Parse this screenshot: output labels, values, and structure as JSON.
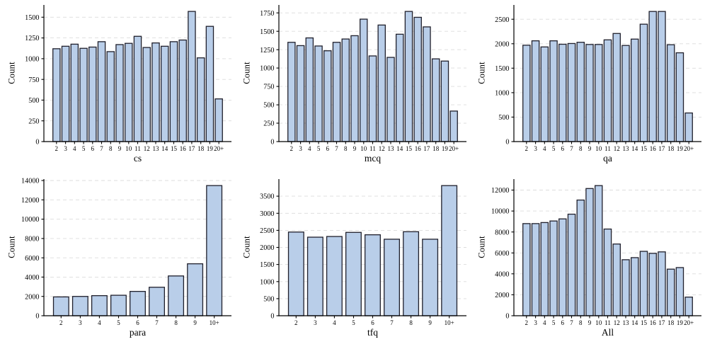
{
  "figure": {
    "background": "#ffffff",
    "bar_fill": "#b9cee9",
    "bar_edge": "#20202c",
    "grid_color": "#dcdcdc",
    "axis_color": "#000000"
  },
  "chart_data": [
    {
      "type": "bar",
      "title": "cs",
      "ylabel": "Count",
      "categories": [
        "2",
        "3",
        "4",
        "5",
        "6",
        "7",
        "8",
        "9",
        "10",
        "11",
        "12",
        "13",
        "14",
        "15",
        "16",
        "17",
        "18",
        "19",
        "20+"
      ],
      "values": [
        1120,
        1150,
        1175,
        1125,
        1140,
        1205,
        1085,
        1170,
        1185,
        1270,
        1135,
        1190,
        1150,
        1205,
        1225,
        1570,
        1010,
        1390,
        515
      ],
      "yticks": [
        0,
        250,
        500,
        750,
        1000,
        1250,
        1500
      ],
      "ylim": [
        0,
        1648
      ],
      "grid": "dashed-horizontal",
      "legend": "none"
    },
    {
      "type": "bar",
      "title": "mcq",
      "ylabel": "Count",
      "categories": [
        "2",
        "3",
        "4",
        "5",
        "6",
        "7",
        "8",
        "9",
        "10",
        "11",
        "12",
        "13",
        "14",
        "15",
        "16",
        "17",
        "18",
        "19",
        "20+"
      ],
      "values": [
        1350,
        1305,
        1410,
        1300,
        1235,
        1350,
        1395,
        1440,
        1665,
        1165,
        1585,
        1145,
        1460,
        1770,
        1690,
        1560,
        1125,
        1095,
        415
      ],
      "yticks": [
        0,
        250,
        500,
        750,
        1000,
        1250,
        1500,
        1750
      ],
      "ylim": [
        0,
        1858
      ],
      "grid": "dashed-horizontal",
      "legend": "none"
    },
    {
      "type": "bar",
      "title": "qa",
      "ylabel": "Count",
      "categories": [
        "2",
        "3",
        "4",
        "5",
        "6",
        "7",
        "8",
        "9",
        "10",
        "11",
        "12",
        "13",
        "14",
        "15",
        "16",
        "17",
        "18",
        "19",
        "20+"
      ],
      "values": [
        1970,
        2060,
        1935,
        2060,
        1990,
        2005,
        2030,
        1985,
        1985,
        2080,
        2210,
        1965,
        2095,
        2400,
        2660,
        2660,
        1980,
        1815,
        585
      ],
      "yticks": [
        0,
        500,
        1000,
        1500,
        2000,
        2500
      ],
      "ylim": [
        0,
        2793
      ],
      "grid": "dashed-horizontal",
      "legend": "none"
    },
    {
      "type": "bar",
      "title": "para",
      "ylabel": "Count",
      "categories": [
        "2",
        "3",
        "4",
        "5",
        "6",
        "7",
        "8",
        "9",
        "10+"
      ],
      "values": [
        1950,
        2000,
        2080,
        2120,
        2520,
        2950,
        4120,
        5380,
        13480
      ],
      "yticks": [
        0,
        2000,
        4000,
        6000,
        8000,
        10000,
        12000,
        14000
      ],
      "ylim": [
        0,
        14150
      ],
      "grid": "dashed-horizontal",
      "legend": "none"
    },
    {
      "type": "bar",
      "title": "tfq",
      "ylabel": "Count",
      "categories": [
        "2",
        "3",
        "4",
        "5",
        "6",
        "7",
        "8",
        "9",
        "10+"
      ],
      "values": [
        2450,
        2300,
        2320,
        2440,
        2370,
        2240,
        2460,
        2240,
        3810
      ],
      "yticks": [
        0,
        500,
        1000,
        1500,
        2000,
        2500,
        3000,
        3500
      ],
      "ylim": [
        0,
        4000
      ],
      "grid": "dashed-horizontal",
      "legend": "none"
    },
    {
      "type": "bar",
      "title": "All",
      "ylabel": "Count",
      "categories": [
        "2",
        "3",
        "4",
        "5",
        "6",
        "7",
        "8",
        "9",
        "10",
        "11",
        "12",
        "13",
        "14",
        "15",
        "16",
        "17",
        "18",
        "19",
        "20+"
      ],
      "values": [
        8800,
        8800,
        8900,
        9050,
        9250,
        9700,
        11050,
        12150,
        12430,
        8280,
        6850,
        5350,
        5550,
        6150,
        5960,
        6100,
        4450,
        4600,
        1780
      ],
      "yticks": [
        0,
        2000,
        4000,
        6000,
        8000,
        10000,
        12000
      ],
      "ylim": [
        0,
        13050
      ],
      "grid": "dashed-horizontal",
      "legend": "none"
    }
  ]
}
